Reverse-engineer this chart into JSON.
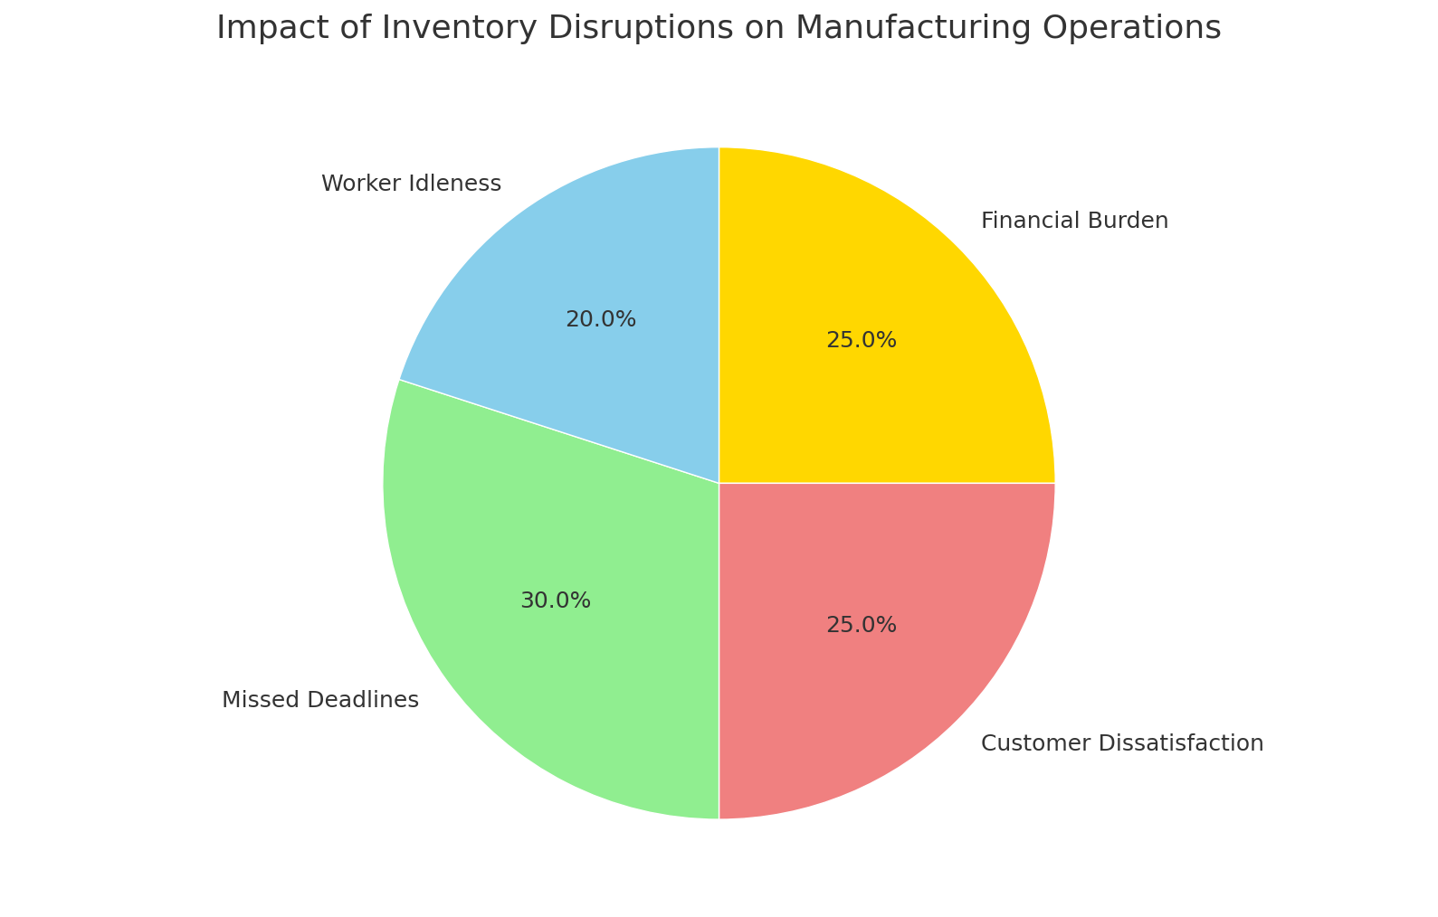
{
  "title": "Impact of Inventory Disruptions on Manufacturing Operations",
  "title_fontsize": 26,
  "labels": [
    "Financial Burden",
    "Customer Dissatisfaction",
    "Missed Deadlines",
    "Worker Idleness"
  ],
  "sizes": [
    25.0,
    25.0,
    30.0,
    20.0
  ],
  "colors": [
    "#FFD700",
    "#F08080",
    "#90EE90",
    "#87CEEB"
  ],
  "autopct_fontsize": 18,
  "label_fontsize": 18,
  "startangle": 90,
  "counterclock": false,
  "figsize": [
    15.89,
    10.14
  ],
  "dpi": 100,
  "background_color": "#FFFFFF"
}
